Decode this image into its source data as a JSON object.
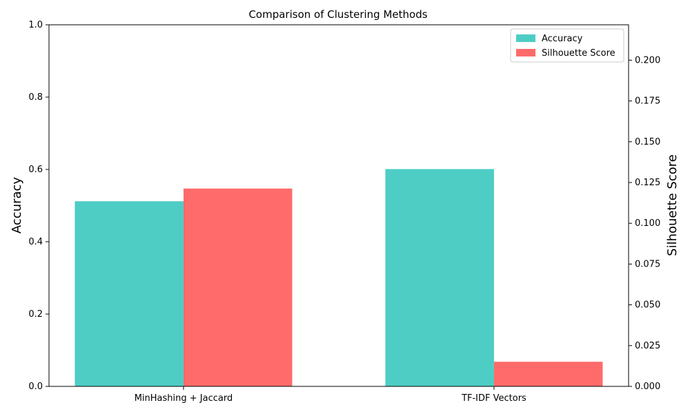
{
  "chart_data": {
    "type": "bar",
    "title": "Comparison of Clustering Methods",
    "categories": [
      "MinHashing + Jaccard",
      "TF-IDF Vectors"
    ],
    "series": [
      {
        "name": "Accuracy",
        "axis": "left",
        "color": "#4ECDC4",
        "values": [
          0.512,
          0.601
        ]
      },
      {
        "name": "Silhouette Score",
        "axis": "right",
        "color": "#FF6B6B",
        "values": [
          0.1213,
          0.0151
        ]
      }
    ],
    "ylabel_left": "Accuracy",
    "ylabel_right": "Silhouette Score",
    "ylim_left": [
      0,
      1.0
    ],
    "ylim_right": [
      0,
      0.2217
    ],
    "yticks_left": [
      "0.0",
      "0.2",
      "0.4",
      "0.6",
      "0.8",
      "1.0"
    ],
    "yticks_right": [
      "0.000",
      "0.025",
      "0.050",
      "0.075",
      "0.100",
      "0.125",
      "0.150",
      "0.175",
      "0.200"
    ],
    "grid": false,
    "legend_position": "top-right"
  }
}
